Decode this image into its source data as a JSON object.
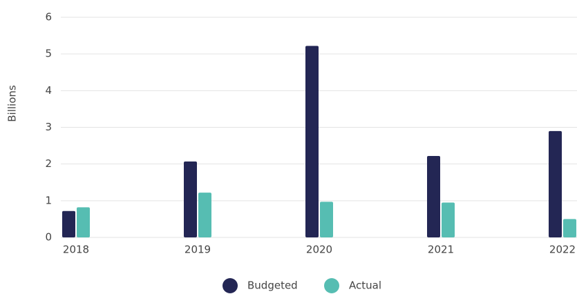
{
  "chart_data": {
    "type": "bar",
    "ylabel": "Billions",
    "categories": [
      "2018",
      "2019",
      "2020",
      "2021",
      "2022"
    ],
    "series": [
      {
        "name": "Budgeted",
        "color": "#232654",
        "values": [
          0.72,
          2.07,
          5.22,
          2.22,
          2.9
        ]
      },
      {
        "name": "Actual",
        "color": "#56bdb2",
        "values": [
          0.82,
          1.22,
          0.97,
          0.95,
          0.5
        ]
      }
    ],
    "ylim": [
      0,
      6
    ],
    "yticks": [
      0,
      1,
      2,
      3,
      4,
      5,
      6
    ],
    "grid": true,
    "legend": "bottom"
  }
}
